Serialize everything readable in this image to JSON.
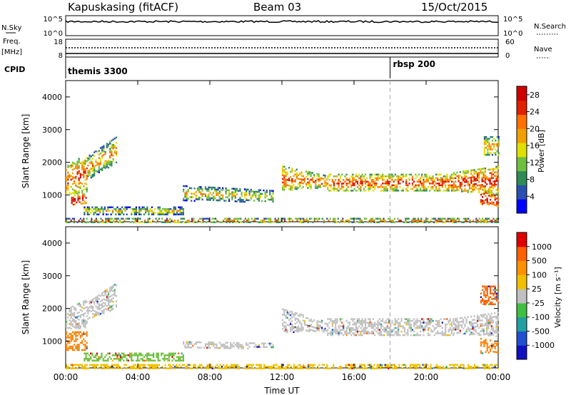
{
  "header": {
    "radar": "Kapuskasing (fitACF)",
    "beam": "Beam 03",
    "date": "15/Oct/2015"
  },
  "status_panels": {
    "nsky_label": "N.Sky",
    "nsky_ticks": [
      "10^5",
      "10^0"
    ],
    "nsearch_label": "N.Search",
    "nsearch_ticks": [
      "10^5",
      "10^0"
    ],
    "freq_label": "Freq.",
    "freq_unit": "[MHz]",
    "freq_ticks": [
      "18",
      "8"
    ],
    "nave_label": "Nave",
    "nave_ticks": [
      "60",
      "0"
    ],
    "cpid_label": "CPID",
    "cpid_segments": [
      {
        "name": "themis 3300",
        "start_hour": 0
      },
      {
        "name": "rbsp 200",
        "start_hour": 18
      }
    ]
  },
  "chart_data": [
    {
      "type": "heatmap",
      "parameter": "power",
      "ylabel": "Slant Range [km]",
      "yticks": [
        "1000",
        "2000",
        "3000",
        "4000"
      ],
      "ylim": [
        180,
        4500
      ],
      "xlim": [
        0,
        24
      ],
      "colorbar": {
        "label": "Power [dB]",
        "ticks": [
          "4",
          "8",
          "12",
          "16",
          "20",
          "24",
          "28"
        ],
        "range": [
          0,
          30
        ],
        "colors": [
          "#0000ff",
          "#2a4fb0",
          "#2e8b57",
          "#6fbf3f",
          "#e0e000",
          "#f0a000",
          "#ff7000",
          "#e02000",
          "#d00000"
        ]
      },
      "scatter_regions": [
        {
          "t": [
            0.0,
            1.2
          ],
          "r_low": [
            1000,
            1100
          ],
          "r_high": [
            1900,
            2300
          ],
          "core": 0.55
        },
        {
          "t": [
            1.2,
            2.8
          ],
          "r_low": [
            1500,
            2000
          ],
          "r_high": [
            2200,
            2800
          ],
          "core": 0.3
        },
        {
          "t": [
            0.3,
            1.1
          ],
          "r_low": [
            700,
            750
          ],
          "r_high": [
            1000,
            1050
          ],
          "core": 0.85
        },
        {
          "t": [
            12.0,
            14.5
          ],
          "r_low": [
            1150,
            1250
          ],
          "r_high": [
            1900,
            1600
          ],
          "core": 0.5
        },
        {
          "t": [
            14.5,
            21.5
          ],
          "r_low": [
            1150,
            1150
          ],
          "r_high": [
            1650,
            1650
          ],
          "core": 0.55
        },
        {
          "t": [
            21.5,
            24.0
          ],
          "r_low": [
            1150,
            1000
          ],
          "r_high": [
            1700,
            1900
          ],
          "core": 0.65
        },
        {
          "t": [
            23.0,
            24.0
          ],
          "r_low": [
            700,
            650
          ],
          "r_high": [
            1200,
            1000
          ],
          "core": 0.8
        },
        {
          "t": [
            1.0,
            6.5
          ],
          "r_low": [
            420,
            420
          ],
          "r_high": [
            650,
            650
          ],
          "core": 0.1
        },
        {
          "t": [
            6.5,
            11.5
          ],
          "r_low": [
            850,
            800
          ],
          "r_high": [
            1300,
            1150
          ],
          "core": 0.15
        },
        {
          "t": [
            23.2,
            24.0
          ],
          "r_low": [
            2200,
            2200
          ],
          "r_high": [
            2800,
            2800
          ],
          "core": 0.3
        },
        {
          "t": [
            0.0,
            24.0
          ],
          "r_low": [
            180,
            180
          ],
          "r_high": [
            300,
            300
          ],
          "core": 0.4
        }
      ]
    },
    {
      "type": "heatmap",
      "parameter": "velocity",
      "ylabel": "Slant Range [km]",
      "yticks": [
        "1000",
        "2000",
        "3000",
        "4000"
      ],
      "ylim": [
        180,
        4500
      ],
      "xlim": [
        0,
        24
      ],
      "xlabel": "Time UT",
      "xticks": [
        "00:00",
        "04:00",
        "08:00",
        "12:00",
        "16:00",
        "20:00",
        "00:00"
      ],
      "colorbar": {
        "label": "Velocity [m s⁻¹]",
        "ticks": [
          "1000",
          "500",
          "100",
          "25",
          "-25",
          "-100",
          "-500",
          "-1000"
        ],
        "colors": [
          "#1010c0",
          "#2050d0",
          "#20a0a0",
          "#40c040",
          "#c0c0c0",
          "#f0c000",
          "#ff9000",
          "#ff6000",
          "#e00000"
        ]
      },
      "scatter_regions": [
        {
          "t": [
            0.0,
            1.2
          ],
          "r_low": [
            1400,
            1400
          ],
          "r_high": [
            2000,
            2300
          ],
          "color": "#c0c0c0"
        },
        {
          "t": [
            1.2,
            2.8
          ],
          "r_low": [
            1700,
            2000
          ],
          "r_high": [
            2200,
            2800
          ],
          "color": "#c0c0c0"
        },
        {
          "t": [
            0.0,
            1.2
          ],
          "r_low": [
            700,
            750
          ],
          "r_high": [
            1300,
            1300
          ],
          "color": "#ff8000"
        },
        {
          "t": [
            12.0,
            14.5
          ],
          "r_low": [
            1300,
            1300
          ],
          "r_high": [
            2000,
            1600
          ],
          "color": "#c0c0c0"
        },
        {
          "t": [
            14.5,
            21.5
          ],
          "r_low": [
            1200,
            1200
          ],
          "r_high": [
            1700,
            1700
          ],
          "color": "#c0c0c0"
        },
        {
          "t": [
            21.5,
            24.0
          ],
          "r_low": [
            1250,
            1150
          ],
          "r_high": [
            1700,
            1900
          ],
          "color": "#c0c0c0"
        },
        {
          "t": [
            23.0,
            24.0
          ],
          "r_low": [
            650,
            650
          ],
          "r_high": [
            1100,
            1000
          ],
          "color": "#ff8000"
        },
        {
          "t": [
            1.0,
            6.5
          ],
          "r_low": [
            420,
            420
          ],
          "r_high": [
            650,
            650
          ],
          "color": "#70c040"
        },
        {
          "t": [
            6.5,
            11.5
          ],
          "r_low": [
            800,
            800
          ],
          "r_high": [
            1000,
            950
          ],
          "color": "#c0c0c0"
        },
        {
          "t": [
            23.0,
            24.0
          ],
          "r_low": [
            2100,
            2100
          ],
          "r_high": [
            2700,
            2700
          ],
          "color": "#ff6000"
        },
        {
          "t": [
            0.0,
            24.0
          ],
          "r_low": [
            180,
            180
          ],
          "r_high": [
            300,
            300
          ],
          "color": "#f0c000"
        }
      ]
    }
  ]
}
